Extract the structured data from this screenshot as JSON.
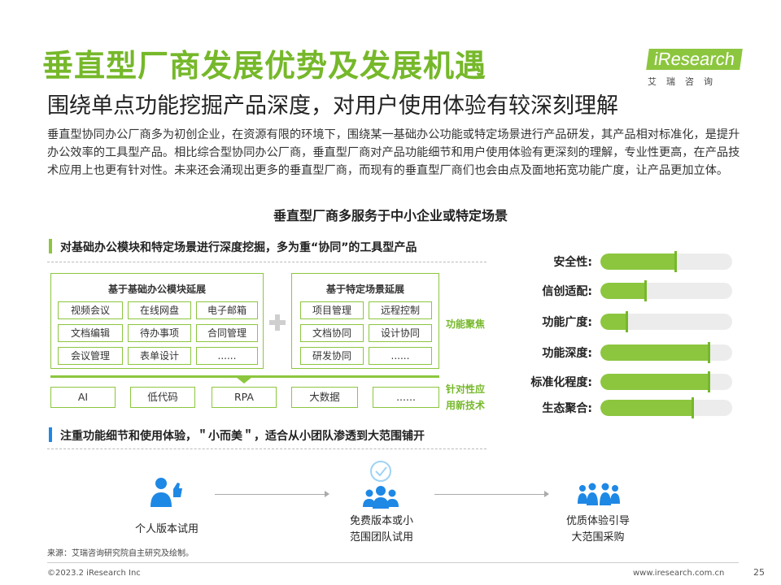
{
  "title": "垂直型厂商发展优势及发展机遇",
  "subtitle": "围绕单点功能挖掘产品深度，对用户使用体验有较深刻理解",
  "logo": {
    "word": "iResearch",
    "sub": "艾瑞咨询"
  },
  "intro": "垂直型协同办公厂商多为初创企业，在资源有限的环境下，围绕某一基础办公功能或特定场景进行产品研发，其产品相对标准化，是提升办公效率的工具型产品。相比综合型协同办公厂商，垂直型厂商对产品功能细节和用户使用体验有更深刻的理解，专业性更高，在产品技术应用上也更有针对性。未来还会涌现出更多的垂直型厂商，而现有的垂直型厂商们也会由点及面地拓宽功能广度，让产品更加立体。",
  "center_heading": "垂直型厂商多服务于中小企业或特定场景",
  "section1": {
    "title": "对基础办公模块和特定场景进行深度挖掘，多为重“协同”的工具型产品",
    "group_left": {
      "title": "基于基础办公模块延展",
      "items": [
        "视频会议",
        "在线网盘",
        "电子邮箱",
        "文档编辑",
        "待办事项",
        "合同管理",
        "会议管理",
        "表单设计",
        "......"
      ]
    },
    "group_right": {
      "title": "基于特定场景延展",
      "items": [
        "项目管理",
        "远程控制",
        "文档协同",
        "设计协同",
        "研发协同",
        "......"
      ]
    },
    "label_focus": "功能聚焦",
    "tech_items": [
      "AI",
      "低代码",
      "RPA",
      "大数据",
      "......"
    ],
    "label_tech_line1": "针对性应",
    "label_tech_line2": "用新技术"
  },
  "section2": {
    "title": "注重功能细节和使用体验，＂小而美＂，适合从小团队渗透到大范围铺开"
  },
  "bars": [
    {
      "label": "安全性:",
      "value": 0.57
    },
    {
      "label": "信创适配:",
      "value": 0.34
    },
    {
      "label": "功能广度:",
      "value": 0.2
    },
    {
      "label": "功能深度:",
      "value": 0.82
    },
    {
      "label": "标准化程度:",
      "value": 0.82
    },
    {
      "label": "生态聚合:",
      "value": 0.7
    }
  ],
  "flow": [
    {
      "icon": "person-thumbs-up-icon",
      "line1": "个人版本试用",
      "line2": ""
    },
    {
      "icon": "team-check-icon",
      "line1": "免费版本或小",
      "line2": "范围团队试用"
    },
    {
      "icon": "crowd-icon",
      "line1": "优质体验引导",
      "line2": "大范围采购"
    }
  ],
  "source": "来源：艾瑞咨询研究院自主研究及绘制。",
  "copyright": "©2023.2 iResearch Inc",
  "site": "www.iresearch.com.cn",
  "page_number": "25",
  "colors": {
    "accent": "#8cc63f",
    "accent_dark": "#76b82a",
    "blue": "#1e88e5",
    "track": "#ececec"
  }
}
